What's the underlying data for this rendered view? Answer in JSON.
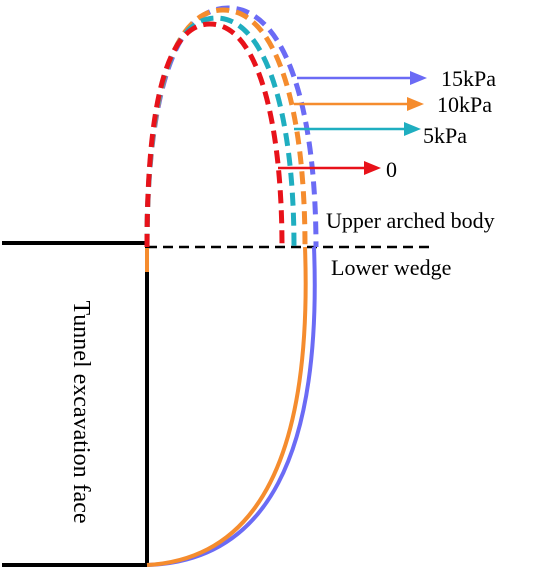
{
  "labels": {
    "p15": "15kPa",
    "p10": "10kPa",
    "p5": "5kPa",
    "p0": "0",
    "upper": "Upper arched body",
    "lower": "Lower wedge",
    "face": "Tunnel excavation face"
  },
  "colors": {
    "p15": "#6B6BF5",
    "p10": "#F58C2E",
    "p5": "#1FAEC0",
    "p0": "#E8121A",
    "structure": "#000000"
  }
}
